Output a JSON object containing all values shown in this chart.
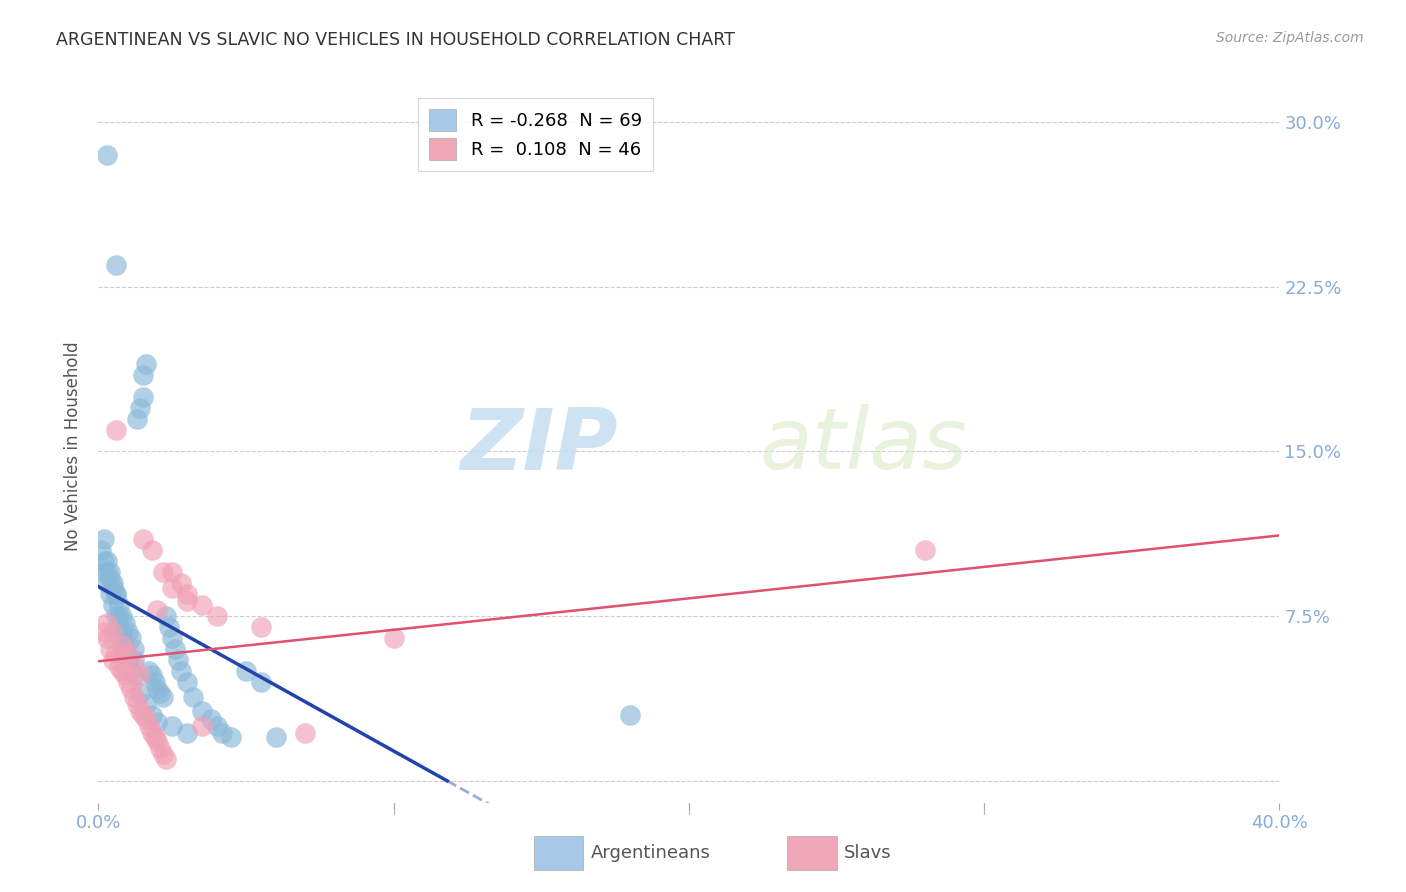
{
  "title": "ARGENTINEAN VS SLAVIC NO VEHICLES IN HOUSEHOLD CORRELATION CHART",
  "source": "Source: ZipAtlas.com",
  "ylabel": "No Vehicles in Household",
  "watermark_zip": "ZIP",
  "watermark_atlas": "atlas",
  "xlim": [
    0.0,
    0.4
  ],
  "ylim": [
    -0.01,
    0.315
  ],
  "yticks": [
    0.0,
    0.075,
    0.15,
    0.225,
    0.3
  ],
  "ytick_labels": [
    "",
    "7.5%",
    "15.0%",
    "22.5%",
    "30.0%"
  ],
  "xticks": [
    0.0,
    0.1,
    0.2,
    0.3,
    0.4
  ],
  "legend_arg_label": "R = -0.268  N = 69",
  "legend_slav_label": "R =  0.108  N = 46",
  "legend_arg_color": "#a8c8e8",
  "legend_slav_color": "#f0a8b8",
  "argentinean_color": "#88b8d8",
  "slavic_color": "#f0a0b4",
  "trend_arg_color": "#2244aa",
  "trend_slav_color": "#e05070",
  "background_color": "#ffffff",
  "grid_color": "#cccccc",
  "tick_color": "#88aadd",
  "argentinean_x": [
    0.001,
    0.002,
    0.002,
    0.003,
    0.003,
    0.004,
    0.004,
    0.005,
    0.005,
    0.006,
    0.006,
    0.007,
    0.007,
    0.008,
    0.008,
    0.009,
    0.009,
    0.01,
    0.01,
    0.011,
    0.011,
    0.012,
    0.012,
    0.013,
    0.014,
    0.015,
    0.015,
    0.016,
    0.017,
    0.018,
    0.019,
    0.02,
    0.021,
    0.022,
    0.023,
    0.024,
    0.025,
    0.026,
    0.027,
    0.028,
    0.03,
    0.032,
    0.035,
    0.038,
    0.04,
    0.042,
    0.045,
    0.05,
    0.055,
    0.06,
    0.002,
    0.003,
    0.004,
    0.005,
    0.006,
    0.007,
    0.008,
    0.009,
    0.01,
    0.012,
    0.014,
    0.016,
    0.018,
    0.02,
    0.025,
    0.03,
    0.18,
    0.003,
    0.006
  ],
  "argentinean_y": [
    0.105,
    0.095,
    0.1,
    0.09,
    0.095,
    0.085,
    0.092,
    0.08,
    0.088,
    0.075,
    0.085,
    0.07,
    0.08,
    0.065,
    0.075,
    0.06,
    0.072,
    0.055,
    0.068,
    0.05,
    0.065,
    0.06,
    0.055,
    0.165,
    0.17,
    0.185,
    0.175,
    0.19,
    0.05,
    0.048,
    0.045,
    0.042,
    0.04,
    0.038,
    0.075,
    0.07,
    0.065,
    0.06,
    0.055,
    0.05,
    0.045,
    0.038,
    0.032,
    0.028,
    0.025,
    0.022,
    0.02,
    0.05,
    0.045,
    0.02,
    0.11,
    0.1,
    0.095,
    0.09,
    0.085,
    0.075,
    0.068,
    0.06,
    0.055,
    0.048,
    0.04,
    0.035,
    0.03,
    0.027,
    0.025,
    0.022,
    0.03,
    0.285,
    0.235
  ],
  "slavic_x": [
    0.002,
    0.003,
    0.004,
    0.005,
    0.006,
    0.007,
    0.008,
    0.009,
    0.01,
    0.011,
    0.012,
    0.013,
    0.014,
    0.015,
    0.016,
    0.017,
    0.018,
    0.019,
    0.02,
    0.021,
    0.022,
    0.023,
    0.025,
    0.028,
    0.03,
    0.035,
    0.04,
    0.055,
    0.1,
    0.28,
    0.003,
    0.005,
    0.008,
    0.01,
    0.012,
    0.015,
    0.018,
    0.022,
    0.025,
    0.03,
    0.035,
    0.07,
    0.006,
    0.009,
    0.014,
    0.02
  ],
  "slavic_y": [
    0.068,
    0.065,
    0.06,
    0.055,
    0.058,
    0.052,
    0.05,
    0.048,
    0.045,
    0.042,
    0.038,
    0.035,
    0.032,
    0.03,
    0.028,
    0.025,
    0.022,
    0.02,
    0.018,
    0.015,
    0.012,
    0.01,
    0.095,
    0.09,
    0.085,
    0.08,
    0.075,
    0.07,
    0.065,
    0.105,
    0.072,
    0.068,
    0.062,
    0.058,
    0.052,
    0.11,
    0.105,
    0.095,
    0.088,
    0.082,
    0.025,
    0.022,
    0.16,
    0.055,
    0.048,
    0.078
  ]
}
